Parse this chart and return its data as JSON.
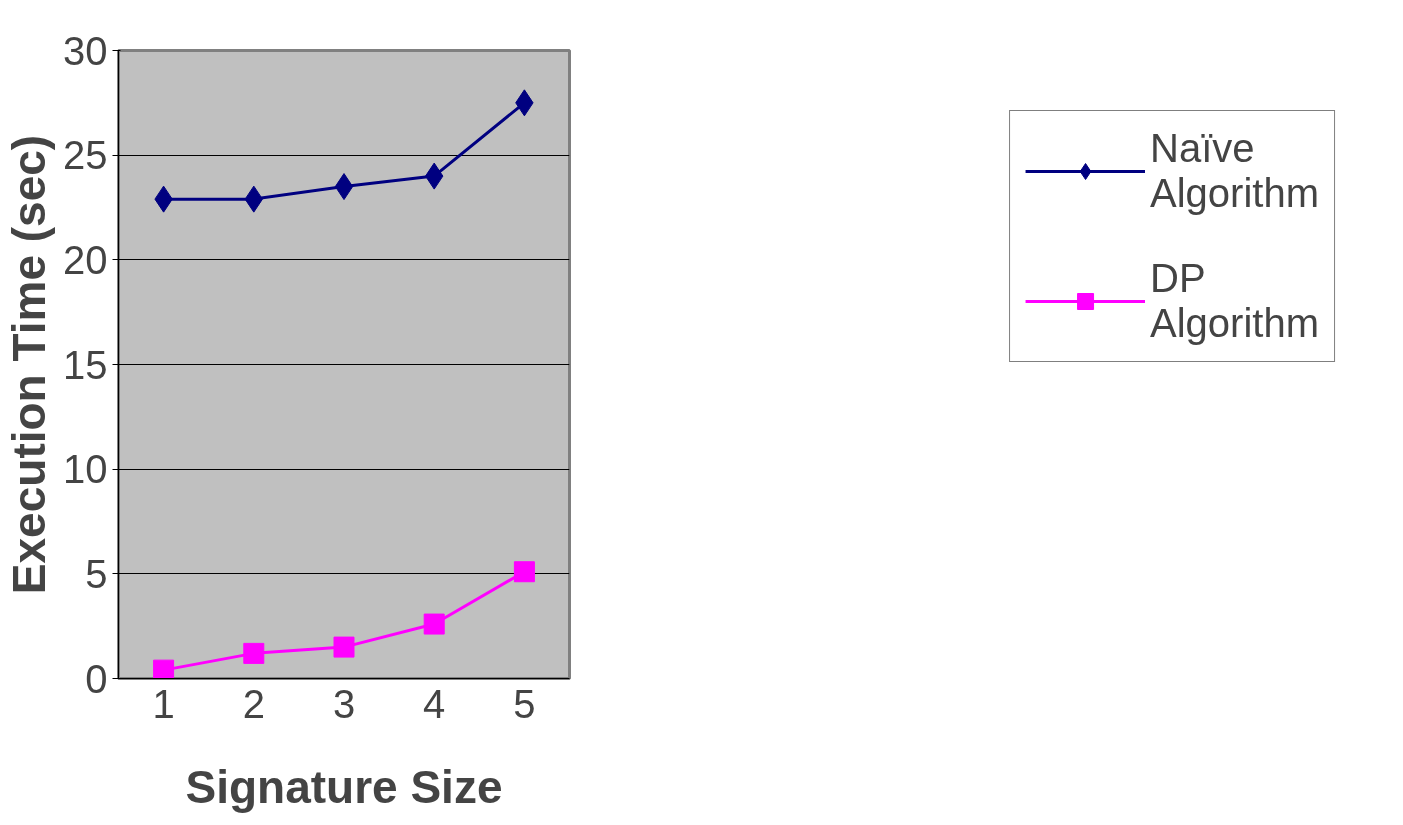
{
  "chart_data": {
    "type": "line",
    "xlabel": "Signature Size",
    "ylabel": "Execution Time (sec)",
    "categories": [
      "1",
      "2",
      "3",
      "4",
      "5"
    ],
    "series": [
      {
        "name": "Naïve Algorithm",
        "color": "#000080",
        "marker": "diamond",
        "values": [
          22.9,
          22.9,
          23.5,
          24.0,
          27.5
        ]
      },
      {
        "name": "DP Algorithm",
        "color": "#ff00ff",
        "marker": "square",
        "values": [
          0.4,
          1.2,
          1.5,
          2.6,
          5.1
        ]
      }
    ],
    "ylim": [
      0,
      30
    ],
    "yticks": [
      0,
      5,
      10,
      15,
      20,
      25,
      30
    ],
    "grid": "y",
    "legend": "right",
    "line_style": "solid"
  }
}
